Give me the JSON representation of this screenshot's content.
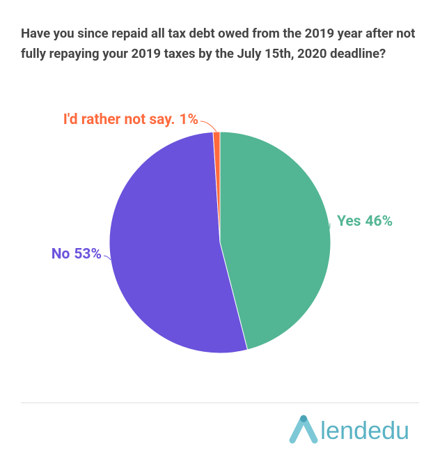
{
  "chart_data": {
    "type": "pie",
    "title": "Have you since repaid all tax debt owed from the 2019 year after not fully repaying your 2019 taxes by the July 15th, 2020 deadline?",
    "categories": [
      "Yes",
      "No",
      "I'd rather not say."
    ],
    "values": [
      46,
      53,
      1
    ],
    "value_labels": [
      "46%",
      "53%",
      "1%"
    ],
    "colors": [
      "#52b594",
      "#6b52dc",
      "#ff6a3d"
    ]
  },
  "logo": "lendedu"
}
